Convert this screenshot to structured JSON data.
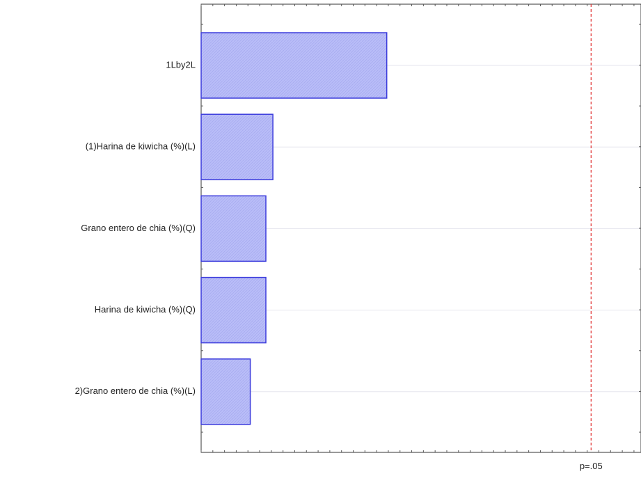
{
  "chart_data": {
    "type": "bar",
    "orientation": "horizontal",
    "title": "",
    "xlabel": "",
    "ylabel": "",
    "categories": [
      "1Lby2L",
      "(1)Harina de kiwicha (%)(L)",
      "Grano entero de chia (%)(Q)",
      "Harina de kiwicha (%)(Q)",
      "2)Grano entero de chia (%)(L)"
    ],
    "values": [
      2.38,
      0.92,
      0.83,
      0.83,
      0.63
    ],
    "xlim": [
      0,
      5.64
    ],
    "reference_line": {
      "value": 5.0,
      "label": "p=.05",
      "color": "#e03030",
      "style": "dashed"
    },
    "grid": true,
    "bar_fill": "#b8bcf8",
    "bar_stroke": "#3b3bdc"
  }
}
